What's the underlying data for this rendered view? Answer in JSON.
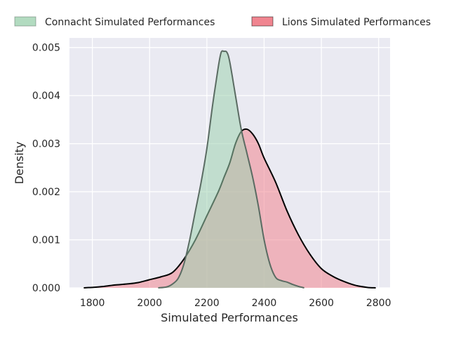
{
  "chart_data": {
    "type": "area",
    "title": "",
    "xlabel": "Simulated Performances",
    "ylabel": "Density",
    "xlim": [
      1720,
      2840
    ],
    "ylim": [
      0,
      0.0052
    ],
    "xticks": [
      1800,
      2000,
      2200,
      2400,
      2600,
      2800
    ],
    "yticks": [
      0.0,
      0.001,
      0.002,
      0.003,
      0.004,
      0.005
    ],
    "xtick_labels": [
      "1800",
      "2000",
      "2200",
      "2400",
      "2600",
      "2800"
    ],
    "ytick_labels": [
      "0.000",
      "0.001",
      "0.002",
      "0.003",
      "0.004",
      "0.005"
    ],
    "grid": true,
    "legend_position": "top",
    "series": [
      {
        "name": "Connacht Simulated Performances",
        "fill": "#9fd2b0",
        "line": "#5a6b62",
        "points": [
          [
            2030,
            0.0
          ],
          [
            2060,
            2e-05
          ],
          [
            2080,
            8e-05
          ],
          [
            2100,
            0.0002
          ],
          [
            2120,
            0.0005
          ],
          [
            2140,
            0.001
          ],
          [
            2160,
            0.0016
          ],
          [
            2180,
            0.0022
          ],
          [
            2200,
            0.0029
          ],
          [
            2220,
            0.0038
          ],
          [
            2240,
            0.0046
          ],
          [
            2250,
            0.0049
          ],
          [
            2260,
            0.00492
          ],
          [
            2270,
            0.0049
          ],
          [
            2280,
            0.0047
          ],
          [
            2300,
            0.004
          ],
          [
            2320,
            0.0033
          ],
          [
            2340,
            0.0028
          ],
          [
            2360,
            0.0023
          ],
          [
            2380,
            0.0017
          ],
          [
            2400,
            0.001
          ],
          [
            2420,
            0.0005
          ],
          [
            2440,
            0.00022
          ],
          [
            2460,
            0.00015
          ],
          [
            2480,
            0.00012
          ],
          [
            2500,
            7e-05
          ],
          [
            2520,
            3e-05
          ],
          [
            2540,
            0.0
          ]
        ]
      },
      {
        "name": "Lions Simulated Performances",
        "fill": "#f08590",
        "line": "#000000",
        "points": [
          [
            1770,
            0.0
          ],
          [
            1800,
            1e-05
          ],
          [
            1840,
            3e-05
          ],
          [
            1880,
            6e-05
          ],
          [
            1920,
            8e-05
          ],
          [
            1960,
            0.00011
          ],
          [
            2000,
            0.00017
          ],
          [
            2040,
            0.00023
          ],
          [
            2080,
            0.00032
          ],
          [
            2120,
            0.0006
          ],
          [
            2160,
            0.001
          ],
          [
            2200,
            0.0015
          ],
          [
            2240,
            0.002
          ],
          [
            2260,
            0.0023
          ],
          [
            2280,
            0.0026
          ],
          [
            2300,
            0.003
          ],
          [
            2320,
            0.00325
          ],
          [
            2340,
            0.0033
          ],
          [
            2360,
            0.0032
          ],
          [
            2380,
            0.003
          ],
          [
            2400,
            0.0027
          ],
          [
            2440,
            0.0022
          ],
          [
            2480,
            0.0016
          ],
          [
            2520,
            0.0011
          ],
          [
            2560,
            0.0007
          ],
          [
            2600,
            0.0004
          ],
          [
            2640,
            0.00024
          ],
          [
            2680,
            0.00013
          ],
          [
            2720,
            5e-05
          ],
          [
            2760,
            1e-05
          ],
          [
            2790,
            0.0
          ]
        ]
      }
    ]
  }
}
